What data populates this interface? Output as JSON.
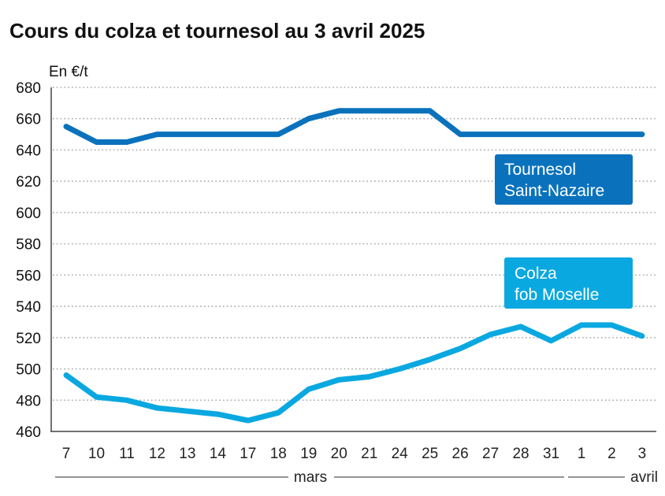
{
  "chart_data": {
    "type": "line",
    "title": "Cours du colza et tournesol au 3 avril 2025",
    "ylabel": "En €/t",
    "xlabel": "",
    "ylim": [
      460,
      680
    ],
    "yticks": [
      460,
      480,
      500,
      520,
      540,
      560,
      580,
      600,
      620,
      640,
      660,
      680
    ],
    "grid": true,
    "categories": [
      "7",
      "10",
      "11",
      "12",
      "13",
      "14",
      "17",
      "18",
      "19",
      "20",
      "21",
      "24",
      "25",
      "26",
      "27",
      "28",
      "31",
      "1",
      "2",
      "3"
    ],
    "month_groups": [
      {
        "label": "mars",
        "from": 0,
        "to": 16
      },
      {
        "label": "avril",
        "from": 17,
        "to": 19
      }
    ],
    "series": [
      {
        "name": "Tournesol Saint-Nazaire",
        "label_lines": [
          "Tournesol",
          "Saint-Nazaire"
        ],
        "color": "#0a72bc",
        "values": [
          655,
          645,
          645,
          650,
          650,
          650,
          650,
          650,
          660,
          665,
          665,
          665,
          665,
          650,
          650,
          650,
          650,
          650,
          650,
          650
        ]
      },
      {
        "name": "Colza fob Moselle",
        "label_lines": [
          "Colza",
          "fob Moselle"
        ],
        "color": "#0aa8e0",
        "values": [
          496,
          482,
          480,
          475,
          473,
          471,
          467,
          472,
          487,
          493,
          495,
          500,
          506,
          513,
          522,
          527,
          518,
          528,
          528,
          521
        ]
      }
    ]
  }
}
